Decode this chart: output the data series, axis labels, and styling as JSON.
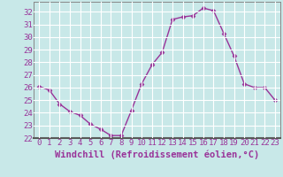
{
  "x": [
    0,
    1,
    2,
    3,
    4,
    5,
    6,
    7,
    8,
    9,
    10,
    11,
    12,
    13,
    14,
    15,
    16,
    17,
    18,
    19,
    20,
    21,
    22,
    23
  ],
  "y": [
    26.1,
    25.8,
    24.7,
    24.1,
    23.8,
    23.1,
    22.7,
    22.2,
    22.2,
    24.2,
    26.3,
    27.8,
    28.8,
    31.4,
    31.6,
    31.7,
    32.3,
    32.1,
    30.3,
    28.5,
    26.3,
    26.0,
    26.0,
    25.0
  ],
  "line_color": "#993399",
  "marker": "D",
  "marker_size": 2.5,
  "bg_color": "#c8e8e8",
  "grid_color": "#ffffff",
  "xlabel": "Windchill (Refroidissement éolien,°C)",
  "xlabel_fontsize": 7.5,
  "tick_fontsize": 6.5,
  "ylim": [
    22,
    32.8
  ],
  "xlim": [
    -0.5,
    23.5
  ],
  "yticks": [
    22,
    23,
    24,
    25,
    26,
    27,
    28,
    29,
    30,
    31,
    32
  ],
  "xticks": [
    0,
    1,
    2,
    3,
    4,
    5,
    6,
    7,
    8,
    9,
    10,
    11,
    12,
    13,
    14,
    15,
    16,
    17,
    18,
    19,
    20,
    21,
    22,
    23
  ],
  "spine_color": "#888888",
  "bottom_bar_color": "#9966aa"
}
